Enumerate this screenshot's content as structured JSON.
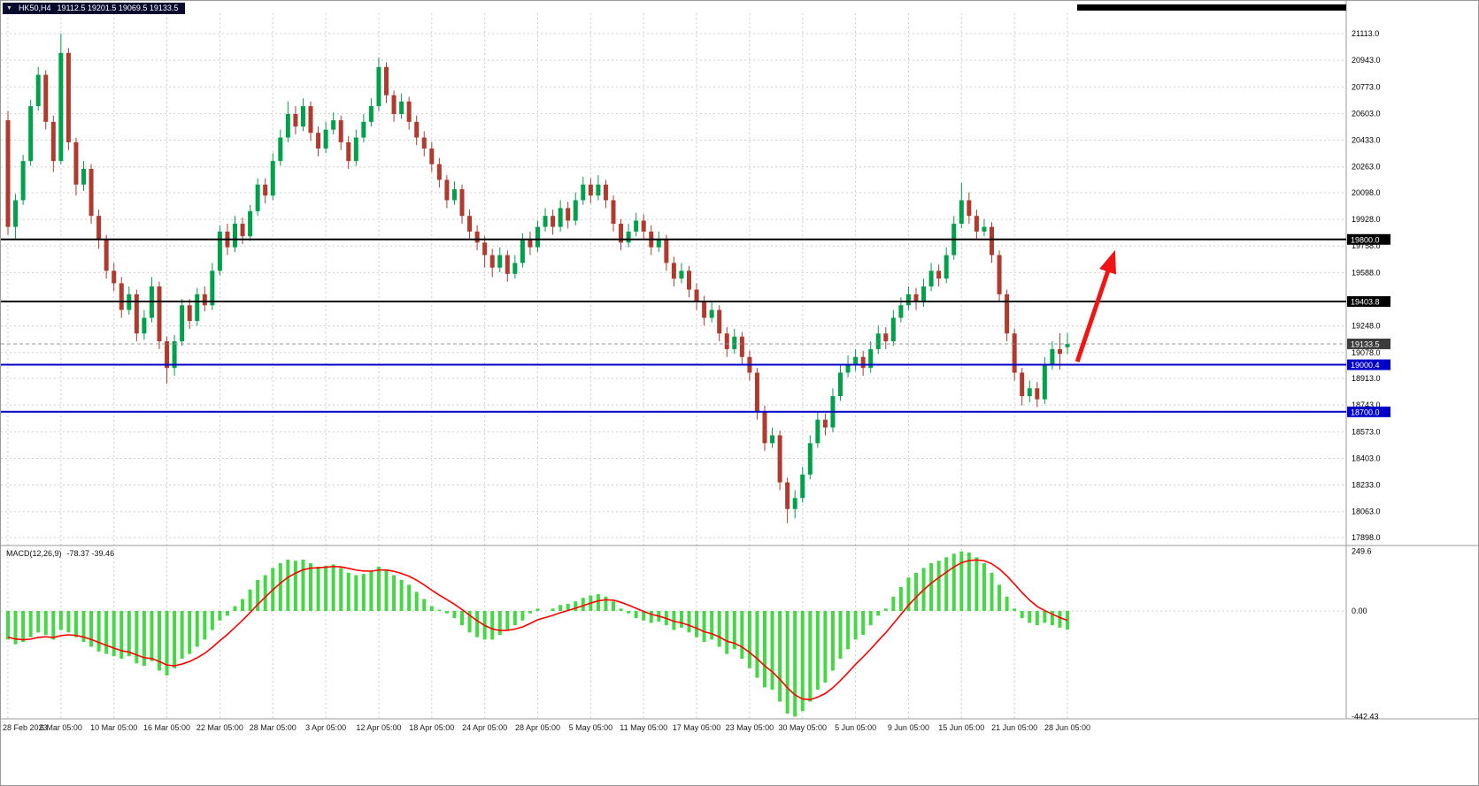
{
  "header": {
    "dropdown_icon": "▼",
    "symbol_timeframe": "HK50,H4",
    "ohlc": "19112.5 19201.5 19069.5 19133.5"
  },
  "macd_header": {
    "name": "MACD(12,26,9)",
    "values": "-78.37 -39.46"
  },
  "chart_data": [
    {
      "type": "candlestick",
      "symbol": "HK50",
      "timeframe": "H4",
      "current_ohlc": {
        "open": 19112.5,
        "high": 19201.5,
        "low": 19069.5,
        "close": 19133.5
      },
      "ylim": [
        17898,
        21113
      ],
      "grid": "dashed",
      "grid_color": "#cdcdcd",
      "bull_color": "#00a14b",
      "bear_color": "#b03a2e",
      "bid_tag_color": "#3c3c3c",
      "bars_per_x_label": 7,
      "x_labels": [
        "28 Feb 2023",
        "6 Mar 05:00",
        "10 Mar 05:00",
        "16 Mar 05:00",
        "22 Mar 05:00",
        "28 Mar 05:00",
        "3 Apr 05:00",
        "12 Apr 05:00",
        "18 Apr 05:00",
        "24 Apr 05:00",
        "28 Apr 05:00",
        "5 May 05:00",
        "11 May 05:00",
        "17 May 05:00",
        "23 May 05:00",
        "30 May 05:00",
        "5 Jun 05:00",
        "9 Jun 05:00",
        "15 Jun 05:00",
        "21 Jun 05:00",
        "28 Jun 05:00"
      ],
      "y_axis": {
        "tick_labels": [
          "21113.0",
          "20943.0",
          "20773.0",
          "20603.0",
          "20433.0",
          "20263.0",
          "20098.0",
          "19928.0",
          "19758.0",
          "19588.0",
          "19248.0",
          "19078.0",
          "18913.0",
          "18743.0",
          "18573.0",
          "18403.0",
          "18233.0",
          "18063.0",
          "17898.0"
        ]
      },
      "price_lines": [
        {
          "label": "19800.0",
          "price": 19800.0,
          "color": "#000000",
          "style": "solid"
        },
        {
          "label": "19403.8",
          "price": 19403.8,
          "color": "#000000",
          "style": "solid"
        },
        {
          "label": "19133.5",
          "price": 19133.5,
          "color": "#3c3c3c",
          "style": "bid"
        },
        {
          "label": "19000.4",
          "price": 19000.4,
          "color": "#0000c8",
          "style": "solid"
        },
        {
          "label": "18700.0",
          "price": 18700.0,
          "color": "#0000c8",
          "style": "solid"
        }
      ],
      "annotations": {
        "arrow": {
          "from_bar": 141.3,
          "from_price": 19020,
          "to_bar": 146,
          "to_price": 19690,
          "color": "#f01414"
        },
        "top_bar": {
          "color": "#000000"
        }
      },
      "candles": [
        [
          20560,
          20620,
          19830,
          19880
        ],
        [
          19880,
          20090,
          19800,
          20050
        ],
        [
          20050,
          20340,
          20020,
          20300
        ],
        [
          20300,
          20690,
          20270,
          20650
        ],
        [
          20650,
          20900,
          20620,
          20850
        ],
        [
          20850,
          20880,
          20500,
          20550
        ],
        [
          20550,
          20590,
          20230,
          20300
        ],
        [
          20300,
          21113,
          20280,
          20990
        ],
        [
          20990,
          21020,
          20370,
          20420
        ],
        [
          20420,
          20450,
          20080,
          20150
        ],
        [
          20150,
          20300,
          20110,
          20250
        ],
        [
          20250,
          20280,
          19900,
          19950
        ],
        [
          19950,
          19990,
          19740,
          19800
        ],
        [
          19800,
          19830,
          19550,
          19600
        ],
        [
          19600,
          19650,
          19470,
          19520
        ],
        [
          19520,
          19560,
          19300,
          19350
        ],
        [
          19350,
          19500,
          19320,
          19450
        ],
        [
          19450,
          19480,
          19150,
          19200
        ],
        [
          19200,
          19350,
          19160,
          19300
        ],
        [
          19300,
          19560,
          19270,
          19500
        ],
        [
          19500,
          19530,
          19100,
          19150
        ],
        [
          19150,
          19180,
          18880,
          18980
        ],
        [
          18980,
          19190,
          18930,
          19150
        ],
        [
          19150,
          19420,
          19120,
          19380
        ],
        [
          19380,
          19420,
          19230,
          19280
        ],
        [
          19280,
          19490,
          19250,
          19450
        ],
        [
          19450,
          19500,
          19340,
          19380
        ],
        [
          19380,
          19650,
          19350,
          19600
        ],
        [
          19600,
          19890,
          19570,
          19850
        ],
        [
          19850,
          19900,
          19700,
          19750
        ],
        [
          19750,
          19950,
          19720,
          19900
        ],
        [
          19900,
          19940,
          19770,
          19820
        ],
        [
          19820,
          20020,
          19790,
          19980
        ],
        [
          19980,
          20190,
          19950,
          20150
        ],
        [
          20150,
          20190,
          20030,
          20080
        ],
        [
          20080,
          20350,
          20050,
          20300
        ],
        [
          20300,
          20500,
          20270,
          20450
        ],
        [
          20450,
          20680,
          20420,
          20600
        ],
        [
          20600,
          20650,
          20470,
          20520
        ],
        [
          20520,
          20700,
          20490,
          20650
        ],
        [
          20650,
          20680,
          20430,
          20480
        ],
        [
          20480,
          20520,
          20330,
          20380
        ],
        [
          20380,
          20550,
          20350,
          20500
        ],
        [
          20500,
          20610,
          20470,
          20560
        ],
        [
          20560,
          20590,
          20370,
          20420
        ],
        [
          20420,
          20460,
          20250,
          20300
        ],
        [
          20300,
          20500,
          20270,
          20450
        ],
        [
          20450,
          20600,
          20420,
          20550
        ],
        [
          20550,
          20700,
          20520,
          20650
        ],
        [
          20650,
          20960,
          20620,
          20900
        ],
        [
          20900,
          20930,
          20670,
          20720
        ],
        [
          20720,
          20750,
          20550,
          20600
        ],
        [
          20600,
          20730,
          20570,
          20680
        ],
        [
          20680,
          20710,
          20500,
          20550
        ],
        [
          20550,
          20590,
          20400,
          20450
        ],
        [
          20450,
          20490,
          20330,
          20380
        ],
        [
          20380,
          20420,
          20230,
          20280
        ],
        [
          20280,
          20320,
          20130,
          20180
        ],
        [
          20180,
          20210,
          20000,
          20050
        ],
        [
          20050,
          20170,
          20020,
          20120
        ],
        [
          20120,
          20150,
          19900,
          19950
        ],
        [
          19950,
          19990,
          19800,
          19850
        ],
        [
          19850,
          19890,
          19730,
          19780
        ],
        [
          19780,
          19820,
          19620,
          19700
        ],
        [
          19700,
          19740,
          19560,
          19620
        ],
        [
          19620,
          19750,
          19590,
          19700
        ],
        [
          19700,
          19730,
          19530,
          19580
        ],
        [
          19580,
          19700,
          19550,
          19650
        ],
        [
          19650,
          19840,
          19620,
          19800
        ],
        [
          19800,
          19850,
          19700,
          19750
        ],
        [
          19750,
          19920,
          19720,
          19880
        ],
        [
          19880,
          20000,
          19850,
          19950
        ],
        [
          19950,
          19990,
          19830,
          19880
        ],
        [
          19880,
          20050,
          19850,
          20000
        ],
        [
          20000,
          20040,
          19870,
          19920
        ],
        [
          19920,
          20100,
          19890,
          20050
        ],
        [
          20050,
          20200,
          20020,
          20150
        ],
        [
          20150,
          20190,
          20030,
          20080
        ],
        [
          20080,
          20210,
          20050,
          20150
        ],
        [
          20150,
          20180,
          20000,
          20050
        ],
        [
          20050,
          20080,
          19850,
          19900
        ],
        [
          19900,
          19930,
          19730,
          19780
        ],
        [
          19780,
          19900,
          19750,
          19850
        ],
        [
          19850,
          19970,
          19820,
          19920
        ],
        [
          19920,
          19960,
          19800,
          19850
        ],
        [
          19850,
          19890,
          19700,
          19750
        ],
        [
          19750,
          19850,
          19720,
          19800
        ],
        [
          19800,
          19830,
          19600,
          19650
        ],
        [
          19650,
          19690,
          19500,
          19550
        ],
        [
          19550,
          19650,
          19520,
          19600
        ],
        [
          19600,
          19630,
          19430,
          19480
        ],
        [
          19480,
          19520,
          19350,
          19400
        ],
        [
          19400,
          19440,
          19250,
          19300
        ],
        [
          19300,
          19400,
          19270,
          19350
        ],
        [
          19350,
          19380,
          19150,
          19200
        ],
        [
          19200,
          19240,
          19050,
          19100
        ],
        [
          19100,
          19230,
          19070,
          19180
        ],
        [
          19180,
          19210,
          19000,
          19050
        ],
        [
          19050,
          19090,
          18900,
          18950
        ],
        [
          18950,
          18980,
          18650,
          18700
        ],
        [
          18700,
          18740,
          18450,
          18500
        ],
        [
          18500,
          18600,
          18470,
          18550
        ],
        [
          18550,
          18580,
          18200,
          18250
        ],
        [
          18250,
          18280,
          17990,
          18080
        ],
        [
          18080,
          18200,
          18020,
          18150
        ],
        [
          18150,
          18350,
          18120,
          18300
        ],
        [
          18300,
          18550,
          18270,
          18500
        ],
        [
          18500,
          18700,
          18470,
          18650
        ],
        [
          18650,
          18690,
          18550,
          18600
        ],
        [
          18600,
          18850,
          18570,
          18800
        ],
        [
          18800,
          19000,
          18770,
          18950
        ],
        [
          18950,
          19060,
          18920,
          19000
        ],
        [
          19000,
          19100,
          18960,
          19050
        ],
        [
          19050,
          19090,
          18930,
          18980
        ],
        [
          18980,
          19150,
          18950,
          19100
        ],
        [
          19100,
          19250,
          19070,
          19200
        ],
        [
          19200,
          19240,
          19100,
          19150
        ],
        [
          19150,
          19350,
          19120,
          19300
        ],
        [
          19300,
          19430,
          19270,
          19380
        ],
        [
          19380,
          19500,
          19350,
          19450
        ],
        [
          19450,
          19490,
          19350,
          19400
        ],
        [
          19400,
          19550,
          19370,
          19500
        ],
        [
          19500,
          19650,
          19470,
          19600
        ],
        [
          19600,
          19640,
          19500,
          19550
        ],
        [
          19550,
          19750,
          19520,
          19700
        ],
        [
          19700,
          19950,
          19670,
          19900
        ],
        [
          19900,
          20160,
          19870,
          20050
        ],
        [
          20050,
          20100,
          19900,
          19950
        ],
        [
          19950,
          19990,
          19800,
          19850
        ],
        [
          19850,
          19930,
          19820,
          19880
        ],
        [
          19880,
          19910,
          19650,
          19700
        ],
        [
          19700,
          19730,
          19400,
          19450
        ],
        [
          19450,
          19480,
          19150,
          19200
        ],
        [
          19200,
          19230,
          18900,
          18950
        ],
        [
          18950,
          18980,
          18740,
          18800
        ],
        [
          18800,
          18900,
          18760,
          18850
        ],
        [
          18850,
          18890,
          18730,
          18780
        ],
        [
          18780,
          19050,
          18750,
          19000
        ],
        [
          19000,
          19150,
          18970,
          19100
        ],
        [
          19100,
          19201.5,
          18970,
          19070
        ],
        [
          19112.5,
          19201.5,
          19069.5,
          19133.5
        ]
      ]
    },
    {
      "type": "bar",
      "name": "MACD(12,26,9)",
      "macd_value": -78.37,
      "signal_value": -39.46,
      "histogram_color": "#44d944",
      "signal_color": "#ff0000",
      "y_axis": {
        "labels": [
          "249.6",
          "0.00",
          "-442.43"
        ],
        "max": 249.6,
        "min": -442.43
      },
      "histogram": [
        -120,
        -140,
        -130,
        -110,
        -90,
        -100,
        -120,
        -80,
        -90,
        -110,
        -130,
        -150,
        -170,
        -180,
        -190,
        -200,
        -190,
        -220,
        -230,
        -210,
        -250,
        -270,
        -240,
        -200,
        -180,
        -150,
        -120,
        -80,
        -40,
        -20,
        20,
        50,
        90,
        130,
        150,
        180,
        200,
        215,
        210,
        215,
        200,
        185,
        190,
        195,
        180,
        160,
        150,
        155,
        165,
        185,
        170,
        150,
        130,
        110,
        80,
        50,
        20,
        5,
        -10,
        -30,
        -60,
        -90,
        -110,
        -120,
        -120,
        -100,
        -80,
        -60,
        -40,
        -10,
        10,
        0,
        10,
        25,
        30,
        40,
        55,
        65,
        70,
        60,
        40,
        10,
        -10,
        -30,
        -40,
        -50,
        -45,
        -60,
        -80,
        -70,
        -90,
        -110,
        -130,
        -120,
        -150,
        -180,
        -160,
        -200,
        -240,
        -280,
        -320,
        -330,
        -380,
        -430,
        -442.43,
        -420,
        -380,
        -330,
        -300,
        -250,
        -200,
        -160,
        -120,
        -100,
        -60,
        -20,
        10,
        60,
        100,
        140,
        160,
        180,
        200,
        210,
        225,
        240,
        249.6,
        245,
        225,
        200,
        160,
        110,
        60,
        10,
        -30,
        -50,
        -60,
        -50,
        -60,
        -70,
        -78.37
      ],
      "signal": [
        -110,
        -117.5,
        -120.6,
        -118,
        -111,
        -108.2,
        -111.2,
        -103.4,
        -100,
        -102.5,
        -109.4,
        -119.5,
        -132.1,
        -144.1,
        -155.6,
        -166.7,
        -172.5,
        -184.4,
        -195.8,
        -199.3,
        -212,
        -226.5,
        -229.9,
        -222.4,
        -211.8,
        -196.3,
        -177.2,
        -152.9,
        -124.7,
        -98.5,
        -68.9,
        -39.2,
        -6.9,
        27.3,
        58,
        88.5,
        116.4,
        141,
        158.3,
        172.5,
        179.4,
        180.8,
        183.1,
        186.1,
        184.6,
        178.4,
        171.3,
        167.2,
        166.7,
        171.3,
        171.5,
        166.1,
        157.1,
        145.3,
        129,
        109.2,
        86.9,
        66.4,
        47.3,
        28,
        6,
        -18,
        -41,
        -60.8,
        -75.6,
        -81.7,
        -81.3,
        -76,
        -67,
        -52.8,
        -37.1,
        -27.8,
        -18.4,
        -7.6,
        1.8,
        11.4,
        22.3,
        33,
        42.3,
        46.7,
        45,
        36.3,
        24.7,
        11,
        -1.8,
        -13.8,
        -21.6,
        -31.2,
        -43.4,
        -50,
        -60,
        -72.5,
        -86.9,
        -95.2,
        -108.9,
        -126.7,
        -135,
        -151.3,
        -173.5,
        -200.1,
        -230.1,
        -255.1,
        -286.3,
        -322.2,
        -351.7,
        -368.8,
        -371.6,
        -361.2,
        -345.9,
        -321.9,
        -291.4,
        -258.5,
        -223.9,
        -192.9,
        -159.7,
        -124.8,
        -91.1,
        -53.3,
        -15,
        23.8,
        57.8,
        88.4,
        116.3,
        139.7,
        162.3,
        184.2,
        201.9,
        211.4,
        213.6,
        210.2,
        197.6,
        175.7,
        146.8,
        112.6,
        77,
        45.2,
        18.9,
        1.7,
        -13.7,
        -27.8,
        -39.46
      ]
    }
  ]
}
